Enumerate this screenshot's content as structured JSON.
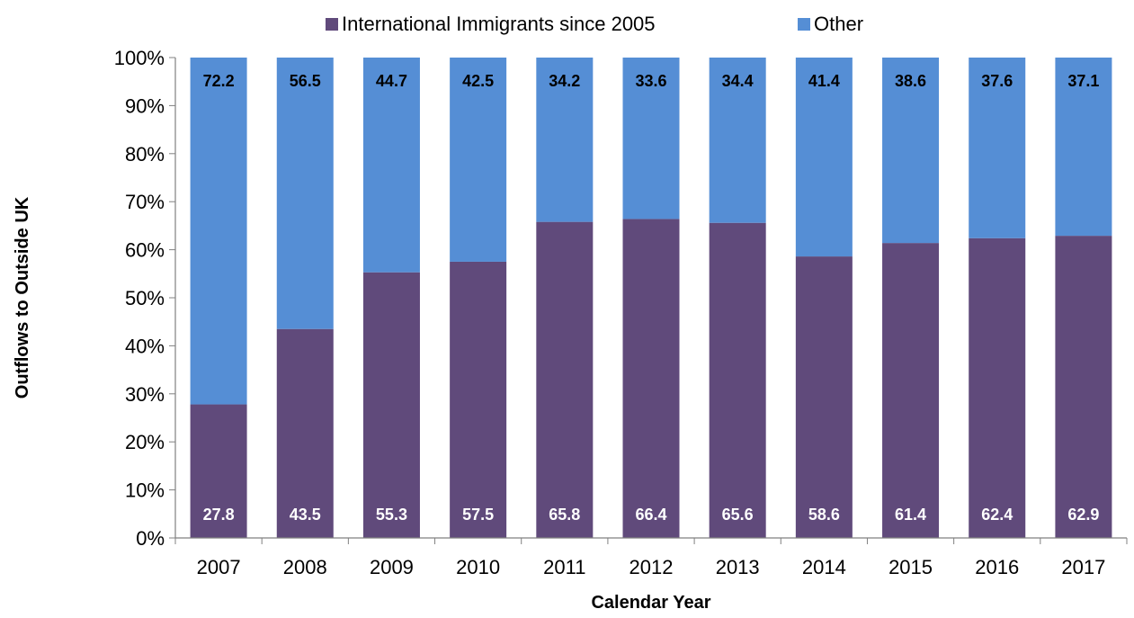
{
  "chart_data": {
    "type": "bar",
    "stacked": true,
    "categories": [
      "2007",
      "2008",
      "2009",
      "2010",
      "2011",
      "2012",
      "2013",
      "2014",
      "2015",
      "2016",
      "2017"
    ],
    "series": [
      {
        "name": "International Immigrants since 2005",
        "color": "#604a7b",
        "label_color": "#ffffff",
        "values": [
          27.8,
          43.5,
          55.3,
          57.5,
          65.8,
          66.4,
          65.6,
          58.6,
          61.4,
          62.4,
          62.9
        ]
      },
      {
        "name": "Other",
        "color": "#558ed5",
        "label_color": "#000000",
        "values": [
          72.2,
          56.5,
          44.7,
          42.5,
          34.2,
          33.6,
          34.4,
          41.4,
          38.6,
          37.6,
          37.1
        ]
      }
    ],
    "xlabel": "Calendar Year",
    "ylabel": "Outflows to Outside UK",
    "ylim": [
      0,
      100
    ],
    "yticks": [
      "0%",
      "10%",
      "20%",
      "30%",
      "40%",
      "50%",
      "60%",
      "70%",
      "80%",
      "90%",
      "100%"
    ],
    "grid": false,
    "legend_position": "top"
  }
}
